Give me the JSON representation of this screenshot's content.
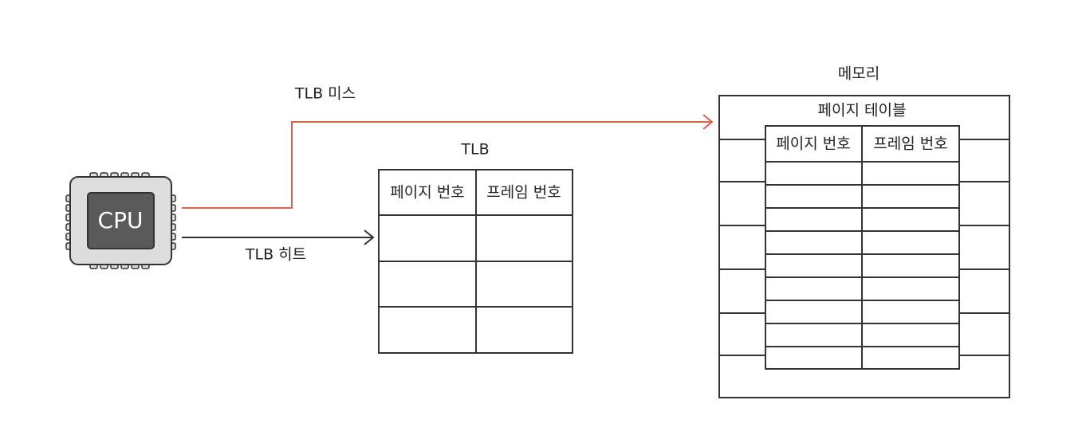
{
  "cpu": {
    "label": "CPU"
  },
  "arrows": {
    "miss": "TLB 미스",
    "hit": "TLB 히트"
  },
  "tlb": {
    "title": "TLB",
    "headers": [
      "페이지 번호",
      "프레임 번호"
    ]
  },
  "memory": {
    "title": "메모리",
    "page_table": {
      "title": "페이지 테이블",
      "headers": [
        "페이지 번호",
        "프레임 번호"
      ]
    }
  }
}
